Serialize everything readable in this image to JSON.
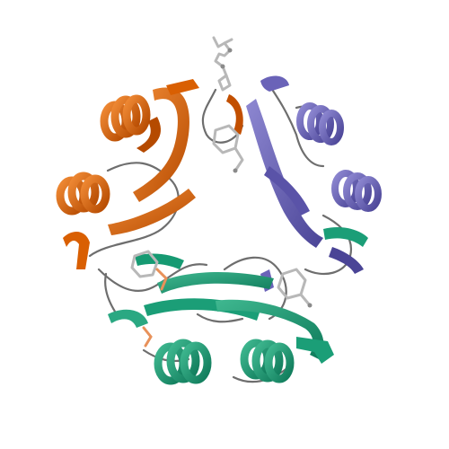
{
  "image": {
    "subject": "protein-trimer-ribbon",
    "background": "#ffffff"
  },
  "chains": [
    {
      "name": "chain-a",
      "color": "#d95f02",
      "color_dark": "#8a3a00",
      "color_light": "#e8915a"
    },
    {
      "name": "chain-b",
      "color": "#6a63b8",
      "color_dark": "#3c3680",
      "color_light": "#9e98d6"
    },
    {
      "name": "chain-c",
      "color": "#1b9e77",
      "color_dark": "#0f6b50",
      "color_light": "#5cc0a0"
    }
  ],
  "ligand_color": "#b8b8b8",
  "coil_color": "#6e6e6e",
  "lettering": []
}
